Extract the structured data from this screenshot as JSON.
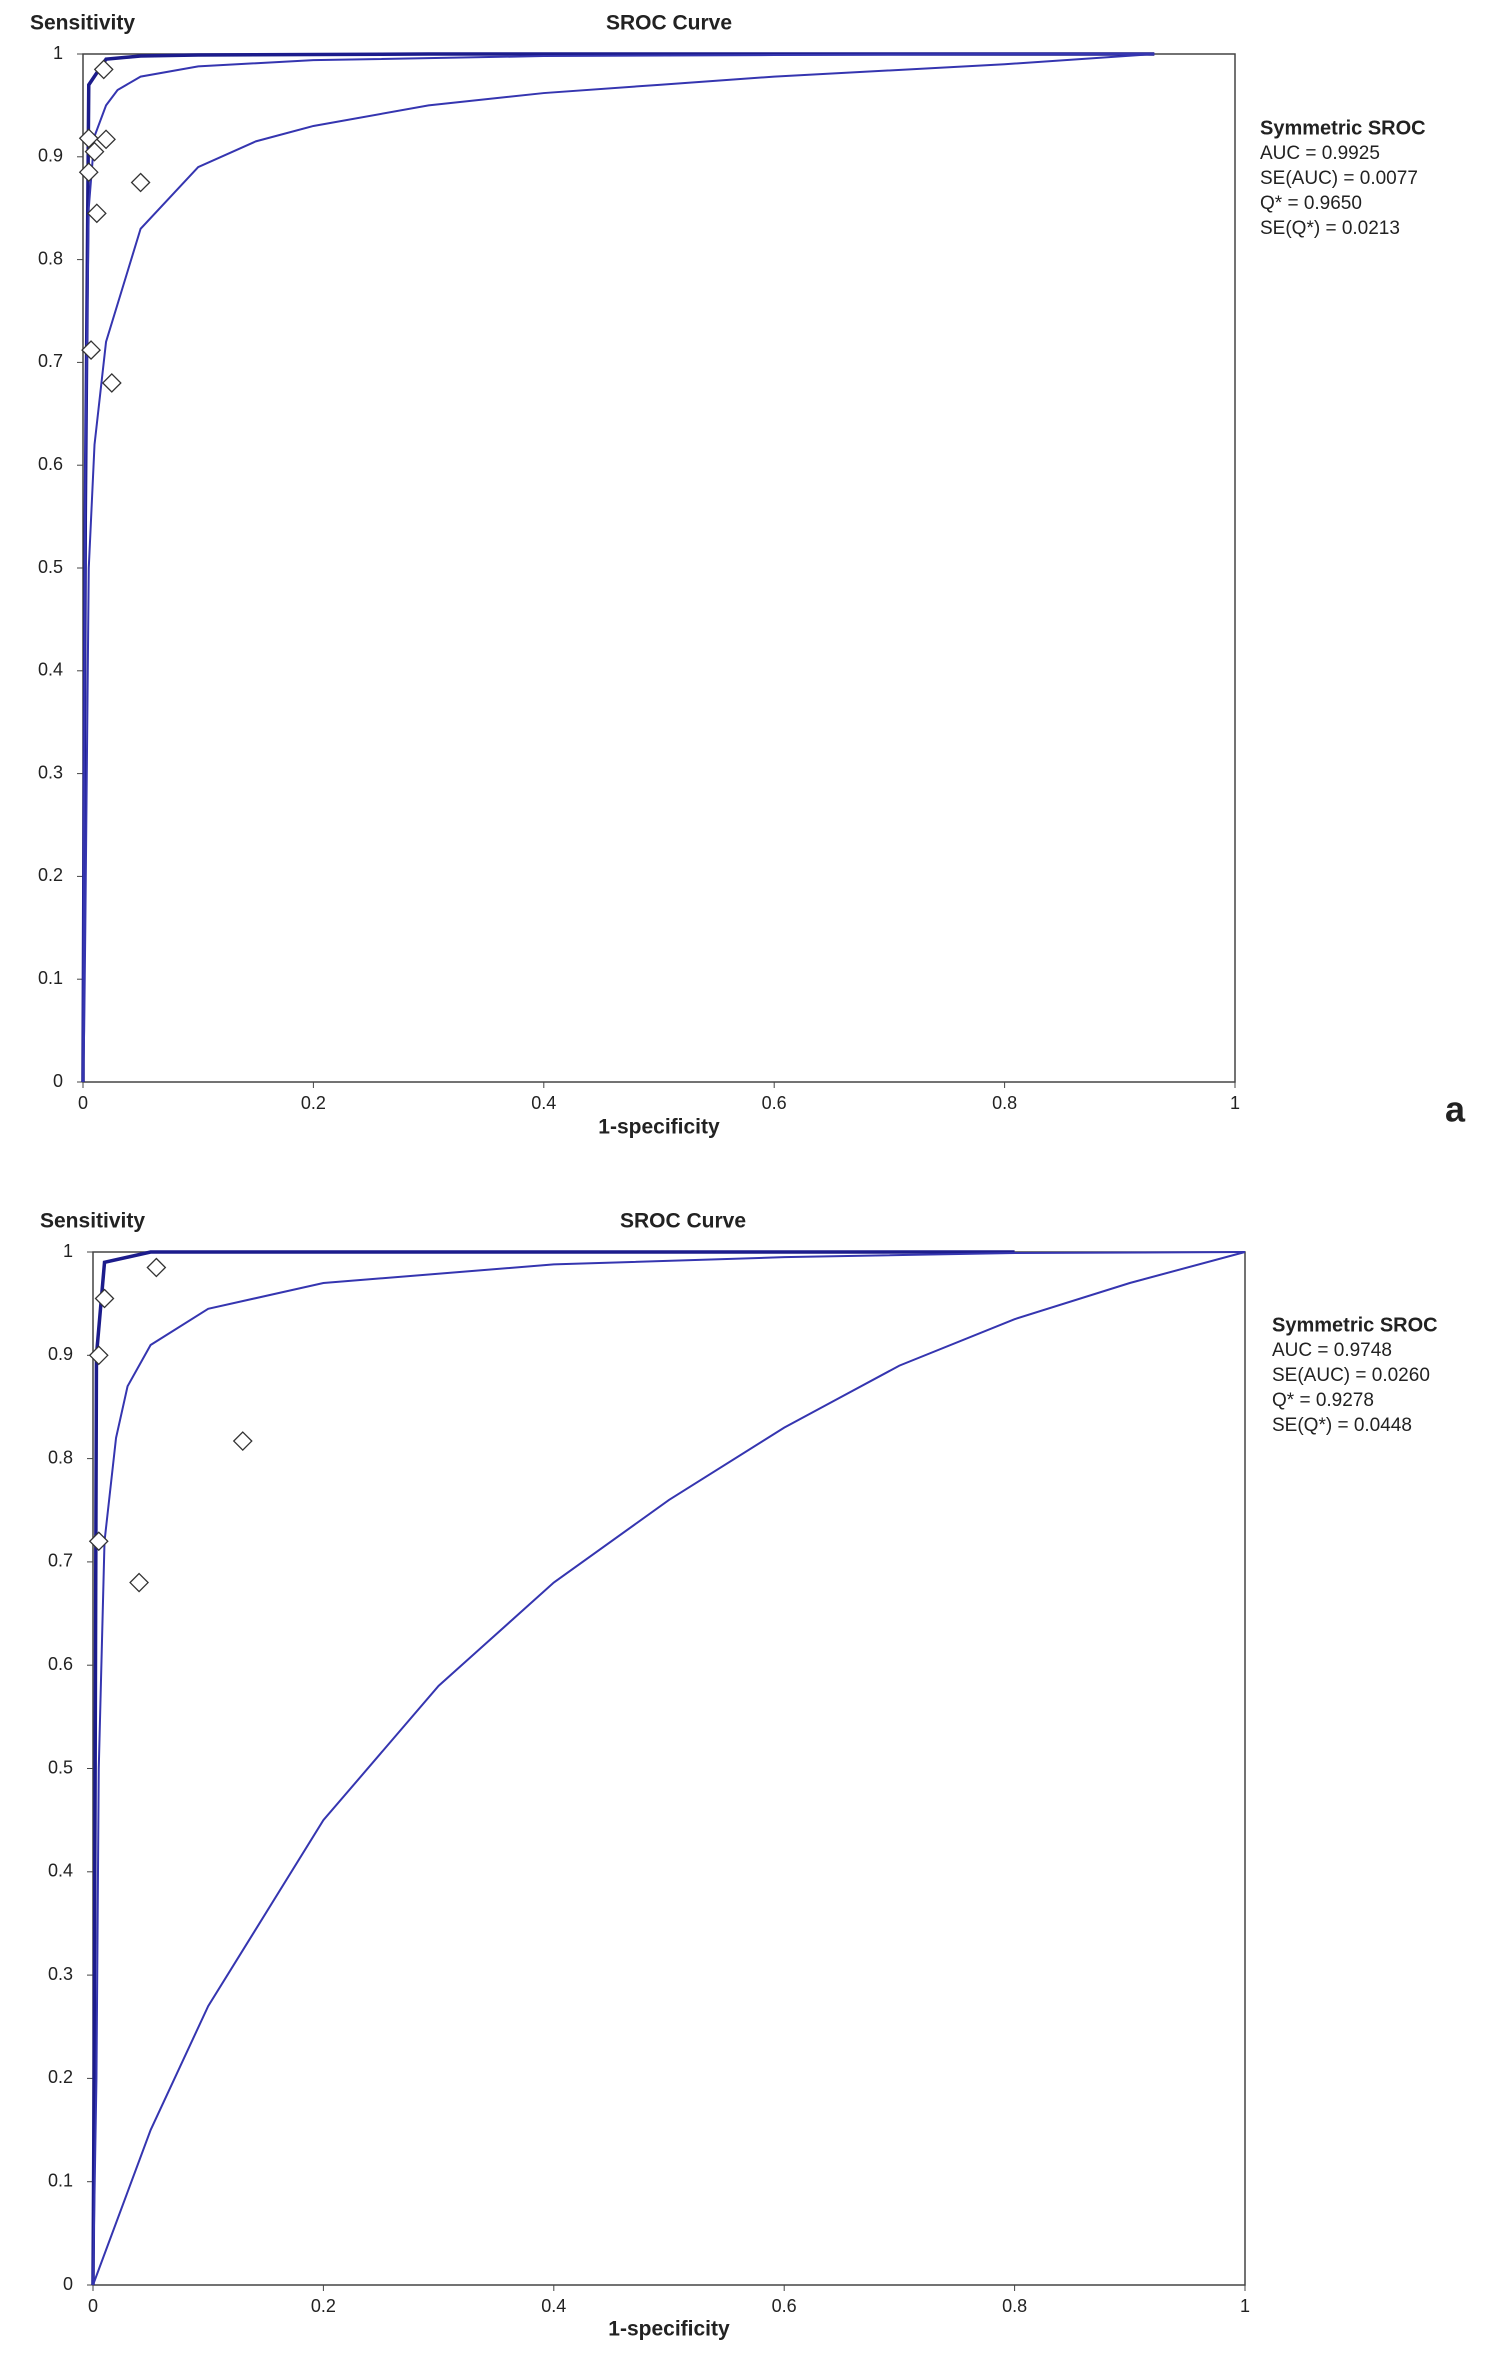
{
  "chart_data": [
    {
      "type": "scatter",
      "title": "SROC Curve",
      "y_label": "Sensitivity",
      "x_label": "1-specificity",
      "annotation_title": "Symmetric SROC",
      "annotations": [
        "AUC = 0.9925",
        "SE(AUC) = 0.0077",
        "Q* = 0.9650",
        "SE(Q*) = 0.0213"
      ],
      "panel_label": "a",
      "xlim": [
        0,
        1
      ],
      "ylim": [
        0,
        1
      ],
      "xticks": [
        0,
        0.2,
        0.4,
        0.6,
        0.8,
        1
      ],
      "yticks": [
        0,
        0.1,
        0.2,
        0.3,
        0.4,
        0.5,
        0.6,
        0.7,
        0.8,
        0.9,
        1
      ],
      "series": [
        {
          "style": "line",
          "color": "#1c1c8c",
          "x": [
            0,
            0.002,
            0.005,
            0.02,
            0.05,
            0.1,
            0.3,
            0.5,
            0.7,
            0.93
          ],
          "values": [
            0,
            0.55,
            0.97,
            0.995,
            0.998,
            0.999,
            1,
            1,
            1,
            1
          ]
        },
        {
          "style": "line",
          "color": "#3535b0",
          "x": [
            0,
            0.002,
            0.005,
            0.01,
            0.02,
            0.03,
            0.05,
            0.1,
            0.2,
            0.4,
            0.6,
            0.8,
            0.93
          ],
          "values": [
            0,
            0.6,
            0.85,
            0.92,
            0.95,
            0.965,
            0.978,
            0.988,
            0.994,
            0.998,
            0.999,
            1,
            1
          ]
        },
        {
          "style": "line",
          "color": "#3535b0",
          "x": [
            0,
            0.001,
            0.002,
            0.005,
            0.01,
            0.02,
            0.05,
            0.1,
            0.15,
            0.2,
            0.3,
            0.4,
            0.5,
            0.6,
            0.8,
            0.93
          ],
          "values": [
            0,
            0.05,
            0.15,
            0.5,
            0.62,
            0.72,
            0.83,
            0.89,
            0.915,
            0.93,
            0.95,
            0.962,
            0.97,
            0.978,
            0.99,
            1
          ]
        },
        {
          "style": "diamond",
          "color": "#ffffff",
          "x": [
            0.018,
            0.005,
            0.02,
            0.01,
            0.005,
            0.05,
            0.012,
            0.007,
            0.025
          ],
          "values": [
            0.985,
            0.918,
            0.917,
            0.905,
            0.885,
            0.875,
            0.845,
            0.712,
            0.68
          ]
        }
      ]
    },
    {
      "type": "scatter",
      "title": "SROC Curve",
      "y_label": "Sensitivity",
      "x_label": "1-specificity",
      "annotation_title": "Symmetric SROC",
      "annotations": [
        "AUC = 0.9748",
        "SE(AUC) = 0.0260",
        "Q* = 0.9278",
        "SE(Q*) = 0.0448"
      ],
      "xlim": [
        0,
        1
      ],
      "ylim": [
        0,
        1
      ],
      "xticks": [
        0,
        0.2,
        0.4,
        0.6,
        0.8,
        1
      ],
      "yticks": [
        0,
        0.1,
        0.2,
        0.3,
        0.4,
        0.5,
        0.6,
        0.7,
        0.8,
        0.9,
        1
      ],
      "series": [
        {
          "style": "line",
          "color": "#1c1c8c",
          "x": [
            0,
            0.001,
            0.003,
            0.01,
            0.05,
            0.1,
            0.3,
            0.5,
            0.8
          ],
          "values": [
            0,
            0.2,
            0.9,
            0.99,
            1,
            1,
            1,
            1,
            1
          ]
        },
        {
          "style": "line",
          "color": "#3535b0",
          "x": [
            0,
            0.003,
            0.005,
            0.01,
            0.02,
            0.03,
            0.05,
            0.1,
            0.2,
            0.4,
            0.6,
            0.8,
            1
          ],
          "values": [
            0,
            0.2,
            0.5,
            0.72,
            0.82,
            0.87,
            0.91,
            0.945,
            0.97,
            0.988,
            0.995,
            0.999,
            1
          ]
        },
        {
          "style": "line",
          "color": "#3535b0",
          "x": [
            0,
            0.05,
            0.1,
            0.2,
            0.3,
            0.4,
            0.5,
            0.6,
            0.7,
            0.8,
            0.9,
            1
          ],
          "values": [
            0,
            0.15,
            0.27,
            0.45,
            0.58,
            0.68,
            0.76,
            0.83,
            0.89,
            0.935,
            0.97,
            1
          ]
        },
        {
          "style": "diamond",
          "color": "#ffffff",
          "x": [
            0.055,
            0.01,
            0.005,
            0.13,
            0.005,
            0.04
          ],
          "values": [
            0.985,
            0.955,
            0.9,
            0.817,
            0.72,
            0.68
          ]
        }
      ]
    }
  ]
}
